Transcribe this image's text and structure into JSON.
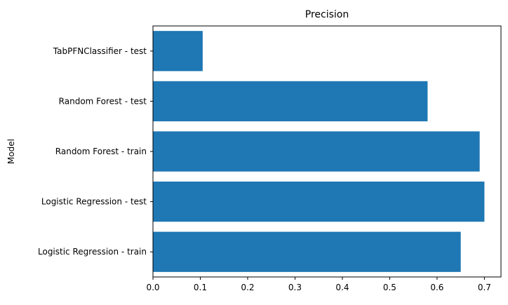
{
  "chart_data": {
    "type": "bar",
    "orientation": "horizontal",
    "title": "Precision",
    "xlabel": "",
    "ylabel": "Model",
    "categories": [
      "Logistic Regression - train",
      "Logistic Regression - test",
      "Random Forest - train",
      "Random Forest - test",
      "TabPFNClassifier - test"
    ],
    "values": [
      0.65,
      0.7,
      0.69,
      0.58,
      0.105
    ],
    "xlim": [
      0,
      0.735
    ],
    "xticks": [
      "0.0",
      "0.1",
      "0.2",
      "0.3",
      "0.4",
      "0.5",
      "0.6",
      "0.7"
    ],
    "grid": false,
    "legend": "none",
    "bar_color": "#1f77b4"
  }
}
